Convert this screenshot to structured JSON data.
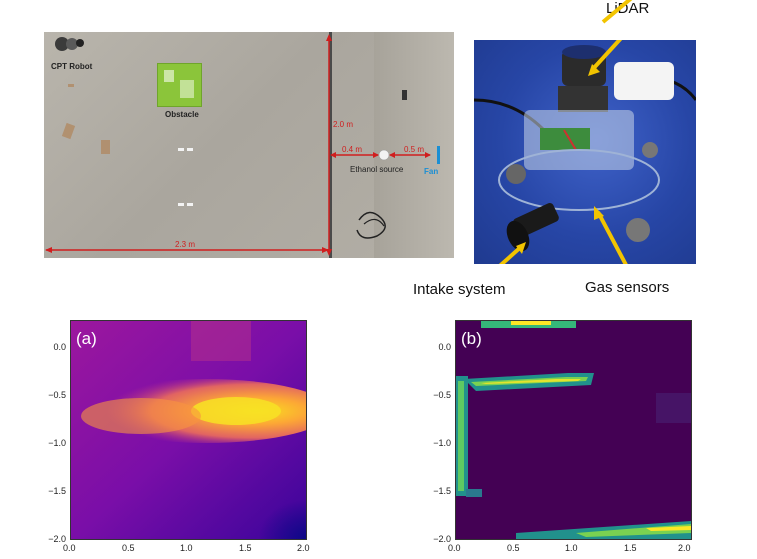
{
  "arena": {
    "labels": {
      "robot": "CPT Robot",
      "obstacle": "Obstacle",
      "source": "Ethanol source",
      "fan": "Fan"
    },
    "dimensions": {
      "height": "2.0 m",
      "width": "2.3 m",
      "source_offset": "0.4 m",
      "fan_offset": "0.5 m"
    }
  },
  "robot_photo": {
    "callouts": {
      "lidar": "LiDAR",
      "intake": "Intake system",
      "gas": "Gas sensors"
    }
  },
  "colors": {
    "plasma_dark": "#0d0887",
    "plasma_mid": "#cc4778",
    "plasma_bright": "#f0f921",
    "viridis_dark": "#440154",
    "viridis_mid": "#21918c",
    "viridis_bright": "#fde725",
    "annotation_red": "#d01e1e",
    "fan_blue": "#1b8fd4"
  },
  "chart_data": [
    {
      "type": "heatmap",
      "panel_label": "(a)",
      "colormap": "plasma",
      "xlim": [
        0.0,
        2.0
      ],
      "ylim": [
        -2.0,
        0.1
      ],
      "x_ticks": [
        "0.0",
        "0.5",
        "1.0",
        "1.5",
        "2.0"
      ],
      "y_ticks": [
        "0.0",
        "−0.5",
        "−1.0",
        "−1.5",
        "−2.0"
      ],
      "features": [
        {
          "desc": "high concentration plume",
          "x_range": [
            0.1,
            1.9
          ],
          "y_range": [
            -0.95,
            -0.45
          ],
          "peak": [
            1.5,
            -0.65
          ]
        },
        {
          "desc": "low region",
          "x_range": [
            1.8,
            2.0
          ],
          "y_range": [
            -2.0,
            -1.4
          ]
        }
      ]
    },
    {
      "type": "heatmap",
      "panel_label": "(b)",
      "colormap": "viridis",
      "xlim": [
        0.0,
        2.0
      ],
      "ylim": [
        -2.0,
        0.1
      ],
      "x_ticks": [
        "0.0",
        "0.5",
        "1.0",
        "1.5",
        "2.0"
      ],
      "y_ticks": [
        "0.0",
        "−0.5",
        "−1.0",
        "−1.5",
        "−2.0"
      ],
      "features": [
        {
          "desc": "top edge band",
          "x_range": [
            0.3,
            1.1
          ],
          "y_range": [
            0.05,
            0.12
          ]
        },
        {
          "desc": "horizontal band",
          "x_range": [
            0.05,
            1.2
          ],
          "y_range": [
            -0.5,
            -0.3
          ]
        },
        {
          "desc": "left vertical band",
          "x_range": [
            0.0,
            0.15
          ],
          "y_range": [
            -1.55,
            -0.35
          ]
        },
        {
          "desc": "bottom edge band",
          "x_range": [
            0.7,
            2.0
          ],
          "y_range": [
            -2.0,
            -1.85
          ]
        }
      ]
    }
  ]
}
